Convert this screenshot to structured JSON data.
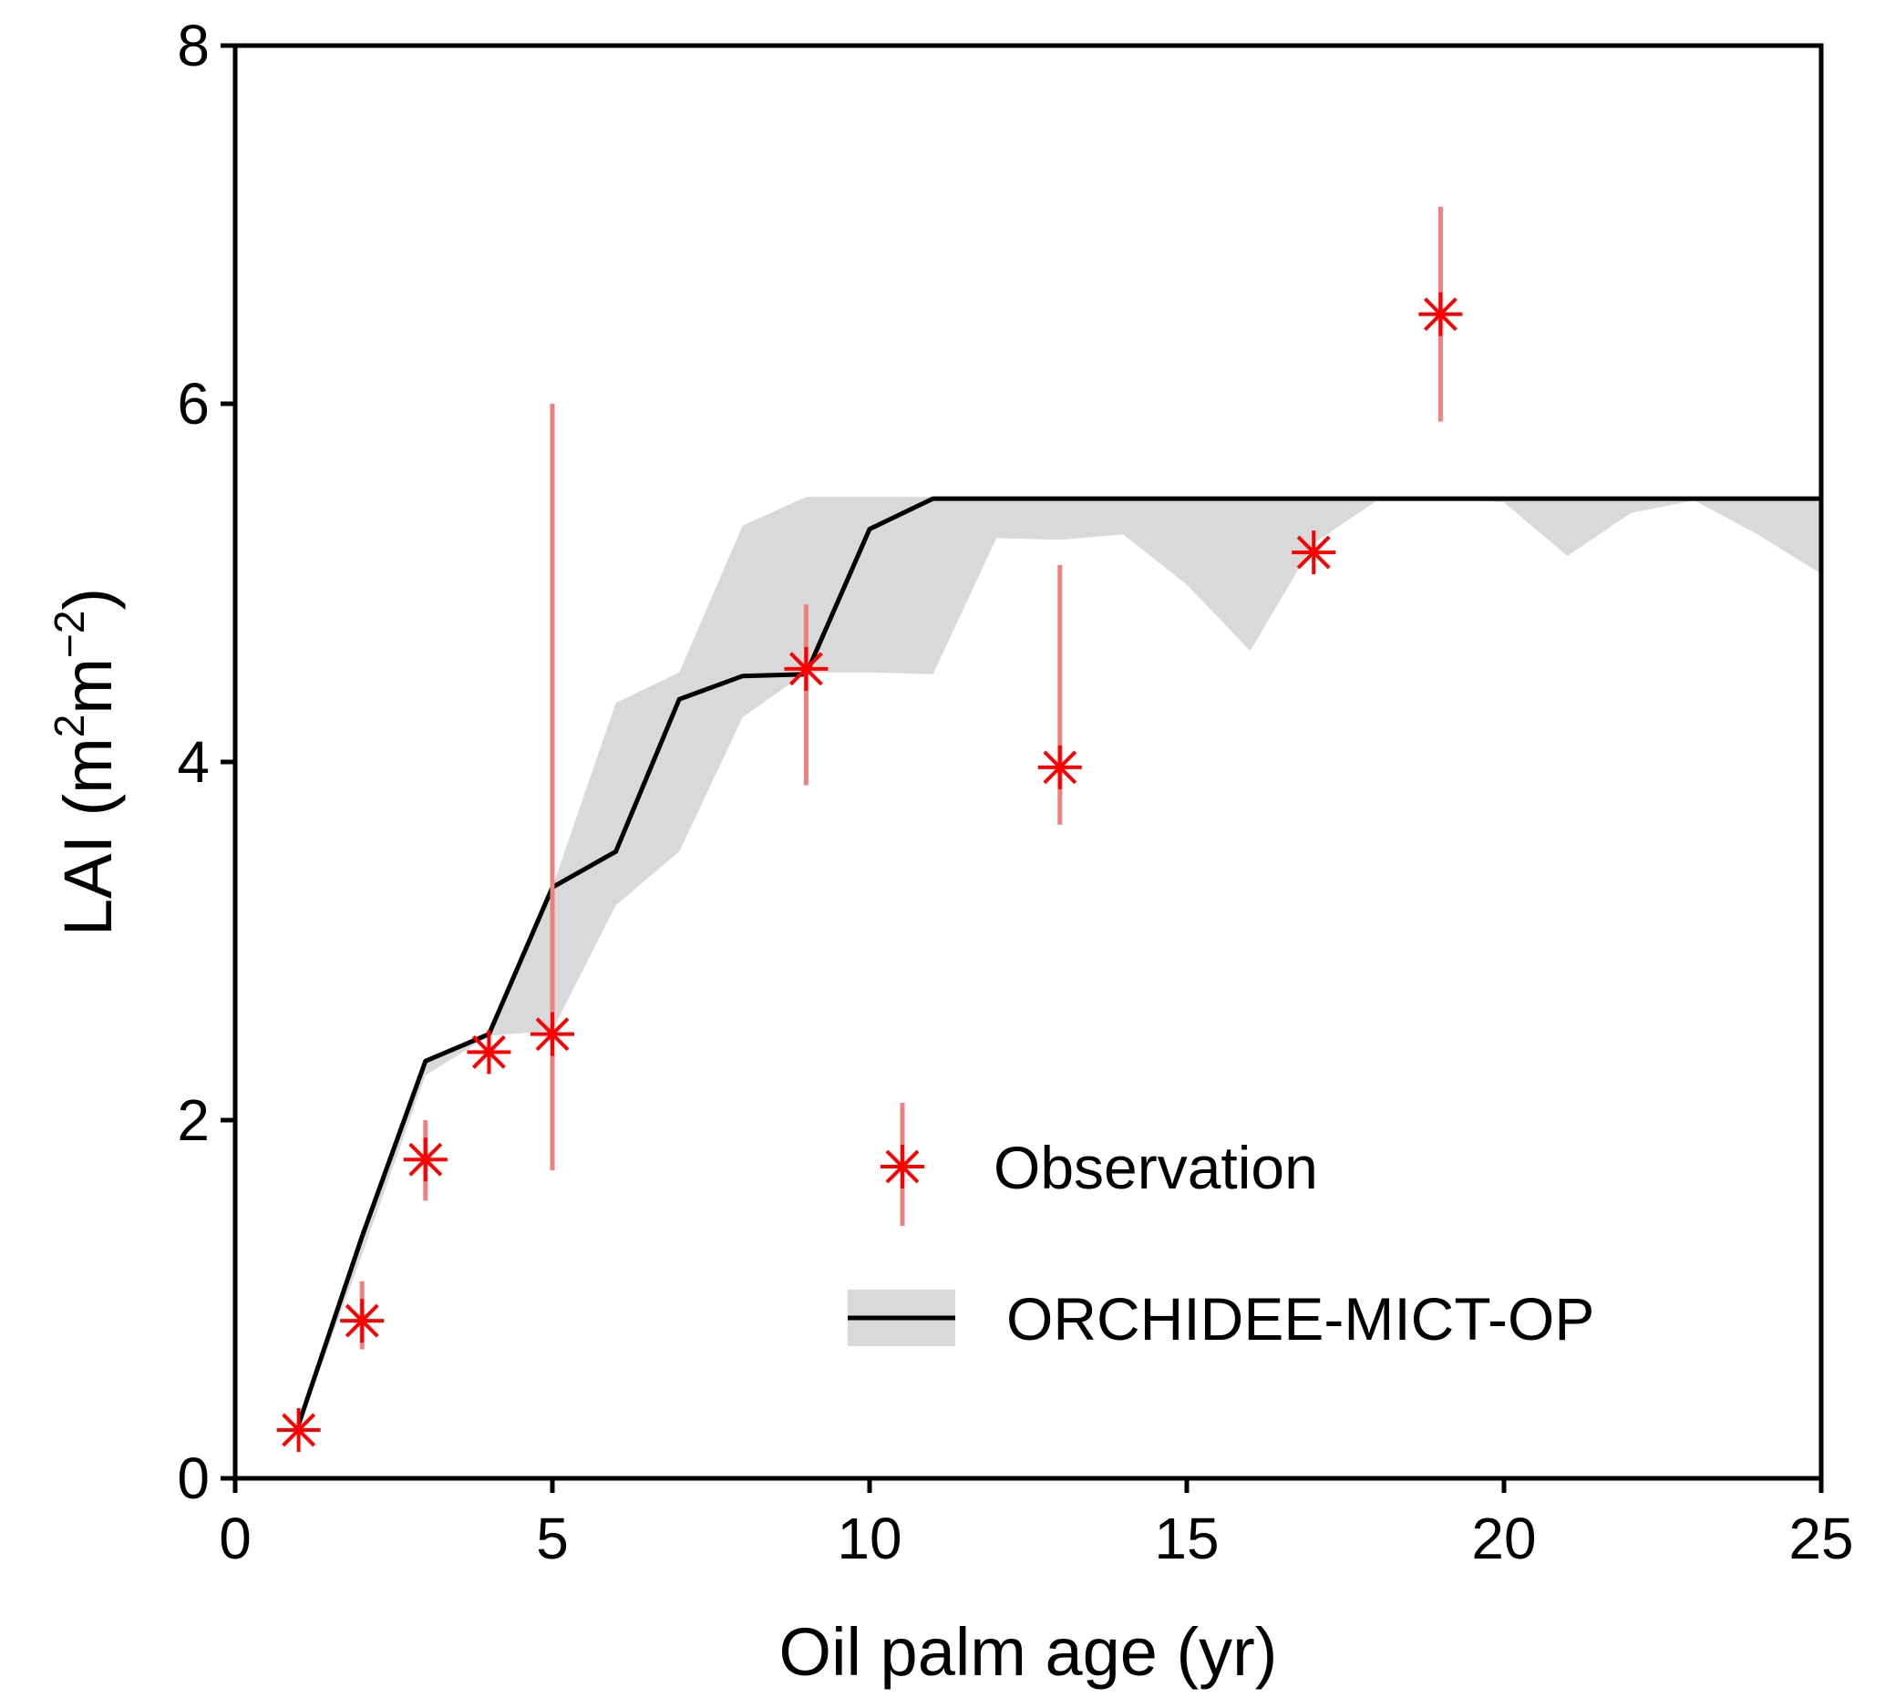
{
  "chart_data": {
    "type": "line",
    "title": "",
    "xlabel": "Oil palm age (yr)",
    "ylabel": {
      "prefix": "LAI (m",
      "sup1": "2",
      "middle": "m",
      "sup2": "−2",
      "suffix": ")"
    },
    "xlim": [
      0,
      25
    ],
    "ylim": [
      0,
      8
    ],
    "xticks": [
      0,
      5,
      10,
      15,
      20,
      25
    ],
    "yticks": [
      0,
      2,
      4,
      6,
      8
    ],
    "grid": false,
    "legend_position": "bottom-right",
    "series": [
      {
        "name": "ORCHIDEE-MICT-OP",
        "kind": "line-with-range",
        "color": "#000000",
        "band_color": "#d9d9d9",
        "x": [
          1,
          2,
          3,
          4,
          5,
          6,
          7,
          8,
          9,
          10,
          11,
          12,
          13,
          14,
          15,
          16,
          17,
          18,
          19,
          20,
          21,
          22,
          23,
          24,
          25
        ],
        "y": [
          0.3,
          1.35,
          2.33,
          2.48,
          3.3,
          3.5,
          4.35,
          4.48,
          4.49,
          5.3,
          5.47,
          5.47,
          5.47,
          5.47,
          5.47,
          5.47,
          5.47,
          5.47,
          5.47,
          5.47,
          5.47,
          5.47,
          5.47,
          5.47,
          5.47
        ],
        "lower": [
          0.28,
          1.25,
          2.25,
          2.47,
          2.5,
          3.2,
          3.5,
          4.25,
          4.5,
          4.5,
          4.49,
          5.25,
          5.24,
          5.27,
          4.99,
          4.62,
          5.22,
          5.46,
          5.47,
          5.45,
          5.15,
          5.39,
          5.46,
          5.27,
          5.05
        ],
        "upper": [
          0.3,
          1.35,
          2.33,
          2.5,
          3.3,
          4.33,
          4.5,
          5.32,
          5.48,
          5.48,
          5.48,
          5.48,
          5.48,
          5.48,
          5.48,
          5.48,
          5.48,
          5.48,
          5.48,
          5.48,
          5.48,
          5.48,
          5.48,
          5.48,
          5.48
        ]
      },
      {
        "name": "Observation",
        "kind": "points-with-error",
        "color": "#ff0000",
        "error_color": "#f08080",
        "x": [
          1,
          2,
          3,
          4,
          5,
          9,
          13,
          17,
          19
        ],
        "y": [
          0.27,
          0.88,
          1.78,
          2.38,
          2.48,
          4.52,
          3.97,
          5.17,
          6.5
        ],
        "err_low": [
          0.27,
          0.72,
          1.55,
          2.38,
          1.72,
          3.87,
          3.65,
          5.17,
          5.9
        ],
        "err_high": [
          0.27,
          1.1,
          2.0,
          2.38,
          6.0,
          4.88,
          5.1,
          5.17,
          7.1
        ]
      }
    ]
  }
}
